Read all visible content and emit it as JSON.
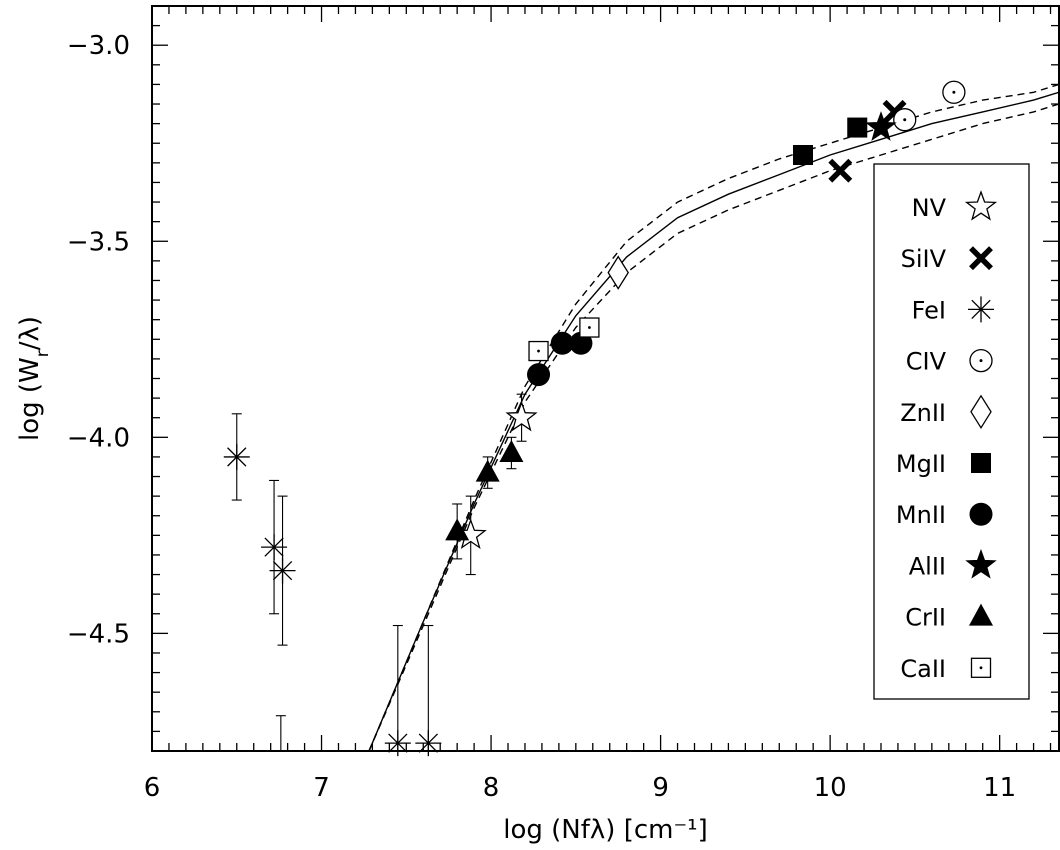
{
  "chart_data": {
    "type": "scatter",
    "title": "",
    "xlabel": "log (Nfλ) [cm⁻¹]",
    "ylabel": "log (W_r/λ)",
    "xlim": [
      6.0,
      11.35
    ],
    "ylim": [
      -4.8,
      -2.9
    ],
    "x_ticks": [
      "6",
      "7",
      "8",
      "9",
      "10",
      "11"
    ],
    "x_tick_values": [
      6,
      7,
      8,
      9,
      10,
      11
    ],
    "y_ticks": [
      "−3.0",
      "−3.5",
      "−4.0",
      "−4.5"
    ],
    "y_tick_values": [
      -3.0,
      -3.5,
      -4.0,
      -4.5
    ],
    "grid": false,
    "legend_position": "right",
    "series": [
      {
        "name": "NV",
        "marker": "star-open",
        "points": [
          {
            "x": 7.88,
            "y": -4.25,
            "err": 0.1
          },
          {
            "x": 8.18,
            "y": -3.95,
            "err": 0.06
          }
        ]
      },
      {
        "name": "SiIV",
        "marker": "cross-bold",
        "points": [
          {
            "x": 10.06,
            "y": -3.32
          },
          {
            "x": 10.38,
            "y": -3.17
          }
        ]
      },
      {
        "name": "FeI",
        "marker": "asterisk",
        "points": [
          {
            "x": 6.5,
            "y": -4.05,
            "err": 0.11
          },
          {
            "x": 6.72,
            "y": -4.28,
            "err": 0.17
          },
          {
            "x": 6.77,
            "y": -4.34,
            "err": 0.19
          },
          {
            "x": 7.45,
            "y": -4.78,
            "err": 0.3
          },
          {
            "x": 7.63,
            "y": -4.78,
            "err": 0.3
          }
        ]
      },
      {
        "name": "CIV",
        "marker": "circle-dot",
        "points": [
          {
            "x": 10.44,
            "y": -3.19
          },
          {
            "x": 10.73,
            "y": -3.12
          }
        ]
      },
      {
        "name": "ZnII",
        "marker": "diamond-open",
        "points": [
          {
            "x": 8.75,
            "y": -3.58,
            "err": 0.02
          }
        ]
      },
      {
        "name": "MgII",
        "marker": "square-filled",
        "points": [
          {
            "x": 9.84,
            "y": -3.28
          },
          {
            "x": 10.16,
            "y": -3.21
          }
        ]
      },
      {
        "name": "MnII",
        "marker": "circle-filled",
        "points": [
          {
            "x": 8.28,
            "y": -3.84
          },
          {
            "x": 8.42,
            "y": -3.76
          },
          {
            "x": 8.53,
            "y": -3.76
          }
        ]
      },
      {
        "name": "AlII",
        "marker": "star-filled",
        "points": [
          {
            "x": 10.3,
            "y": -3.21
          }
        ]
      },
      {
        "name": "CrII",
        "marker": "triangle-filled",
        "points": [
          {
            "x": 7.8,
            "y": -4.24,
            "err": 0.07
          },
          {
            "x": 7.98,
            "y": -4.09,
            "err": 0.04
          },
          {
            "x": 8.12,
            "y": -4.04,
            "err": 0.04
          }
        ]
      },
      {
        "name": "CaII",
        "marker": "square-dot",
        "points": [
          {
            "x": 8.28,
            "y": -3.78
          },
          {
            "x": 8.58,
            "y": -3.72
          }
        ]
      }
    ],
    "extra_errorbars": [
      {
        "x": 6.76,
        "ylow": -4.8,
        "yhigh": -4.71
      }
    ],
    "curves": [
      {
        "style": "solid",
        "x": [
          7.28,
          7.6,
          7.9,
          8.2,
          8.5,
          8.8,
          9.1,
          9.4,
          9.7,
          10.0,
          10.3,
          10.6,
          10.9,
          11.2,
          11.35
        ],
        "y": [
          -4.8,
          -4.47,
          -4.17,
          -3.89,
          -3.69,
          -3.54,
          -3.44,
          -3.38,
          -3.33,
          -3.28,
          -3.24,
          -3.2,
          -3.17,
          -3.14,
          -3.12
        ]
      },
      {
        "style": "dashed",
        "x": [
          7.28,
          7.6,
          7.9,
          8.2,
          8.5,
          8.8,
          9.1,
          9.4,
          9.7,
          10.0,
          10.3,
          10.6,
          10.9,
          11.2,
          11.35
        ],
        "y": [
          -4.8,
          -4.47,
          -4.16,
          -3.87,
          -3.66,
          -3.5,
          -3.4,
          -3.34,
          -3.29,
          -3.25,
          -3.21,
          -3.17,
          -3.14,
          -3.12,
          -3.1
        ]
      },
      {
        "style": "dashed",
        "x": [
          7.28,
          7.6,
          7.9,
          8.2,
          8.5,
          8.8,
          9.1,
          9.4,
          9.7,
          10.0,
          10.3,
          10.6,
          10.9,
          11.2,
          11.35
        ],
        "y": [
          -4.8,
          -4.48,
          -4.18,
          -3.91,
          -3.72,
          -3.58,
          -3.48,
          -3.42,
          -3.37,
          -3.32,
          -3.28,
          -3.24,
          -3.2,
          -3.17,
          -3.15
        ]
      }
    ]
  }
}
